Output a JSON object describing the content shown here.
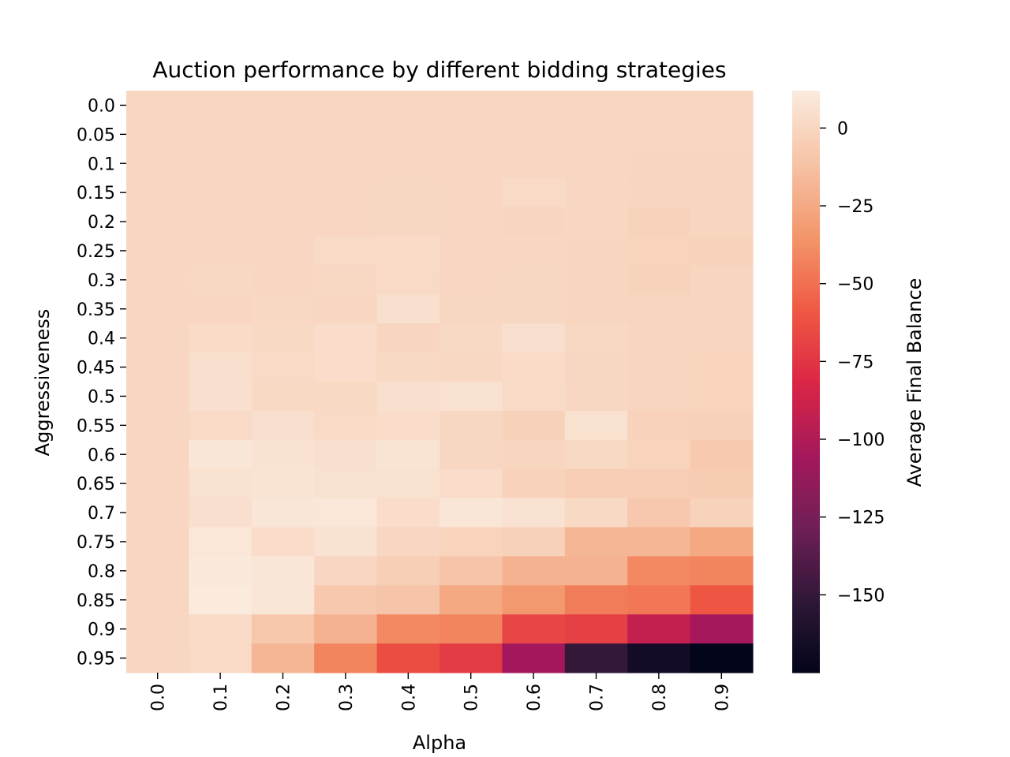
{
  "chart_data": {
    "type": "heatmap",
    "title": "Auction performance by different bidding strategies",
    "xlabel": "Alpha",
    "ylabel": "Aggressiveness",
    "colorbar_label": "Average Final Balance",
    "colormap": "rocket",
    "x": [
      "0.0",
      "0.1",
      "0.2",
      "0.3",
      "0.4",
      "0.5",
      "0.6",
      "0.7",
      "0.8",
      "0.9"
    ],
    "y": [
      "0.0",
      "0.05",
      "0.1",
      "0.15",
      "0.2",
      "0.25",
      "0.3",
      "0.35",
      "0.4",
      "0.45",
      "0.5",
      "0.55",
      "0.6",
      "0.65",
      "0.7",
      "0.75",
      "0.8",
      "0.85",
      "0.9",
      "0.95"
    ],
    "color_range": [
      -175,
      12
    ],
    "colorbar_ticks": [
      0,
      -25,
      -50,
      -75,
      -100,
      -125,
      -150
    ],
    "colorbar_tick_labels": [
      "0",
      "−25",
      "−50",
      "−75",
      "−100",
      "−125",
      "−150"
    ],
    "values": [
      [
        0,
        0,
        0,
        0,
        0,
        0,
        0,
        0,
        0,
        0
      ],
      [
        0,
        0,
        0,
        0,
        0,
        0,
        0,
        0,
        -0.3,
        -0.3
      ],
      [
        0,
        0,
        0,
        0,
        0,
        0,
        0,
        0,
        -1,
        -1
      ],
      [
        0,
        0,
        0,
        0,
        0.5,
        0,
        2,
        0,
        -1,
        -1
      ],
      [
        0,
        0,
        0,
        0,
        0.5,
        0,
        -1,
        0,
        -2,
        -1
      ],
      [
        0,
        0,
        0,
        2,
        3,
        0,
        0,
        -1,
        -1.5,
        -2
      ],
      [
        0,
        1,
        0,
        1,
        2,
        0,
        0.5,
        -1,
        -2,
        -1
      ],
      [
        0,
        0,
        1,
        0,
        5,
        0.5,
        0.5,
        -1,
        -0.5,
        -1
      ],
      [
        0,
        3,
        1.5,
        4,
        -0.5,
        1.5,
        5,
        1,
        -0.5,
        -1
      ],
      [
        0,
        5,
        2,
        4,
        1.5,
        1,
        3,
        0.5,
        -0.5,
        -1.5
      ],
      [
        0,
        5,
        1.5,
        1.5,
        5,
        6,
        2.5,
        0.5,
        -1,
        -1.5
      ],
      [
        0,
        2,
        5,
        2,
        3.5,
        0.5,
        -3,
        6,
        -2.5,
        -3
      ],
      [
        0,
        9,
        7,
        5.5,
        8,
        0.5,
        -1,
        1.5,
        -1.5,
        -7
      ],
      [
        0,
        6,
        7.5,
        6,
        6,
        3.5,
        -2.5,
        -5,
        -5,
        -6
      ],
      [
        0,
        5,
        9,
        9.5,
        4,
        9,
        7,
        1.5,
        -8,
        -2
      ],
      [
        0,
        9.5,
        4,
        7,
        0,
        -1.5,
        -3,
        -18,
        -18,
        -25
      ],
      [
        0,
        11,
        9,
        0,
        -4,
        -10,
        -20,
        -20,
        -40,
        -42
      ],
      [
        0,
        12,
        9,
        -8,
        -10,
        -25,
        -33,
        -45,
        -47,
        -60
      ],
      [
        0,
        3,
        -9,
        -20,
        -40,
        -42,
        -67,
        -70,
        -92,
        -105
      ],
      [
        0,
        2,
        -18,
        -42,
        -64,
        -72,
        -106,
        -150,
        -166,
        -175
      ]
    ]
  }
}
